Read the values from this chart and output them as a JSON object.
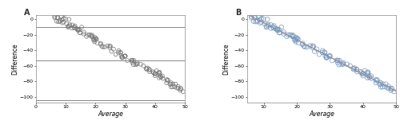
{
  "panel_A": {
    "label": "A",
    "x_range": [
      5,
      50
    ],
    "y_range": [
      -107,
      5
    ],
    "x_ticks": [
      0,
      10,
      20,
      30,
      40,
      50
    ],
    "y_ticks": [
      0,
      -20,
      -40,
      -60,
      -80,
      -100
    ],
    "xlabel": "Average",
    "ylabel": "Difference",
    "hlines": [
      -10,
      -53,
      -104
    ],
    "hline_color": "#888888",
    "scatter_color": "#777777",
    "marker_size": 3.5,
    "marker_edgewidth": 0.5
  },
  "panel_B": {
    "label": "B",
    "x_range": [
      5,
      50
    ],
    "y_range": [
      -107,
      5
    ],
    "x_ticks": [
      10,
      20,
      30,
      40,
      50
    ],
    "y_ticks": [
      0,
      -20,
      -40,
      -60,
      -80,
      -100
    ],
    "xlabel": "Average",
    "ylabel": "Difference",
    "fit_color": "#cc7777",
    "scatter_color": "#7799bb",
    "marker_size": 4.0,
    "marker_edgewidth": 0.5,
    "fit_slope": -2.2,
    "fit_intercept": 17.5
  },
  "seed": 42,
  "n_points": 130,
  "bg_color": "#ffffff",
  "spine_color": "#888888",
  "tick_labelsize": 4.5,
  "axis_labelsize": 5.5,
  "label_fontsize": 7,
  "label_color": "#333333"
}
